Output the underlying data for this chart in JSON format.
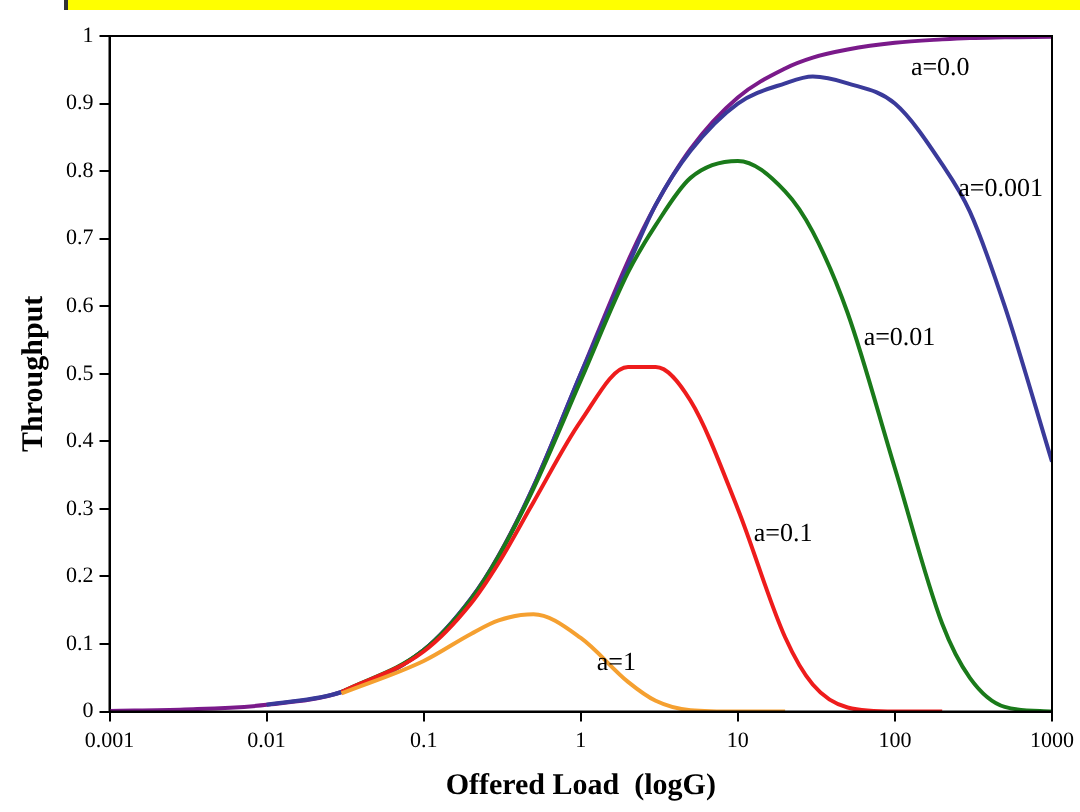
{
  "chart_data": {
    "type": "line",
    "xlabel": "Offered Load  (logG)",
    "ylabel": "Throughput",
    "log": "x",
    "grid": false,
    "legend": false,
    "marker": "none",
    "line_style": "solid",
    "xlim": [
      0.001,
      1000
    ],
    "xticks": [
      0.001,
      0.01,
      0.1,
      1,
      10,
      100,
      1000
    ],
    "ylim": [
      0,
      1
    ],
    "yticks": [
      0,
      0.1,
      0.2,
      0.3,
      0.4,
      0.5,
      0.6,
      0.7,
      0.8,
      0.9,
      1
    ],
    "series": [
      {
        "color": "#f5a030",
        "x": [
          0.03,
          0.1,
          0.2,
          0.3,
          0.5,
          1,
          2,
          3,
          5,
          10,
          20
        ],
        "values": [
          0.027,
          0.075,
          0.115,
          0.135,
          0.144,
          0.109,
          0.044,
          0.016,
          0.002,
          0,
          0
        ]
      },
      {
        "color": "#ee1c1c",
        "x": [
          0.03,
          0.1,
          0.2,
          0.3,
          0.5,
          1,
          2,
          3,
          5,
          10,
          20,
          30,
          50,
          100,
          200
        ],
        "values": [
          0.029,
          0.089,
          0.16,
          0.22,
          0.31,
          0.43,
          0.51,
          0.51,
          0.46,
          0.3,
          0.11,
          0.04,
          0.006,
          0,
          0
        ]
      },
      {
        "color": "#1a7a1a",
        "x": [
          0.03,
          0.1,
          0.2,
          0.3,
          0.5,
          1,
          2,
          3,
          5,
          10,
          20,
          30,
          50,
          100,
          200,
          300,
          500,
          1000
        ],
        "values": [
          0.029,
          0.091,
          0.166,
          0.23,
          0.33,
          0.49,
          0.65,
          0.72,
          0.79,
          0.815,
          0.77,
          0.71,
          0.59,
          0.36,
          0.13,
          0.05,
          0.007,
          0
        ]
      },
      {
        "color": "#3a3a9a",
        "x": [
          0.01,
          0.03,
          0.1,
          0.2,
          0.3,
          0.5,
          1,
          2,
          3,
          5,
          10,
          20,
          30,
          50,
          100,
          200,
          300,
          500,
          1000
        ],
        "values": [
          0.01,
          0.029,
          0.091,
          0.167,
          0.23,
          0.333,
          0.5,
          0.66,
          0.75,
          0.83,
          0.9,
          0.93,
          0.94,
          0.93,
          0.9,
          0.81,
          0.74,
          0.6,
          0.37
        ]
      },
      {
        "color": "#7a1a8a",
        "x": [
          0.001,
          0.003,
          0.01,
          0.03,
          0.1,
          0.2,
          0.3,
          0.5,
          1,
          2,
          3,
          5,
          10,
          20,
          30,
          50,
          100,
          200,
          300,
          500,
          1000
        ],
        "values": [
          0.001,
          0.003,
          0.01,
          0.029,
          0.091,
          0.167,
          0.231,
          0.333,
          0.5,
          0.667,
          0.75,
          0.833,
          0.909,
          0.952,
          0.968,
          0.98,
          0.99,
          0.995,
          0.997,
          0.998,
          0.999
        ]
      }
    ],
    "annotations": [
      {
        "text": "a=0.0",
        "x": 100,
        "y": 0.99
      },
      {
        "text": "a=0.001",
        "x": 200,
        "y": 0.81
      },
      {
        "text": "a=0.01",
        "x": 50,
        "y": 0.59
      },
      {
        "text": "a=0.1",
        "x": 10,
        "y": 0.3
      },
      {
        "text": "a=1",
        "x": 1,
        "y": 0.109
      }
    ]
  }
}
